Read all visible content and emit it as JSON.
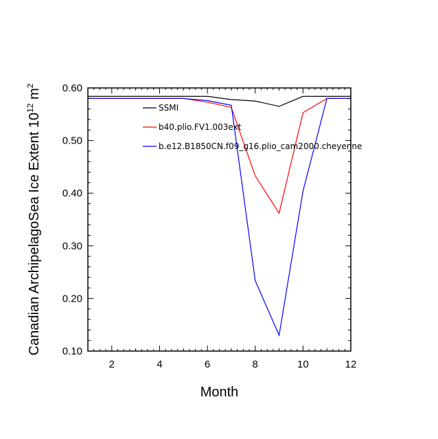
{
  "chart_data": {
    "type": "line",
    "xlabel": "Month",
    "ylabel_main": "Canadian ArchipelagoSea Ice Extent 10",
    "ylabel_exponent": "12",
    "ylabel_unit": " m",
    "ylabel_unit_exponent": "2",
    "xlim": [
      1,
      12
    ],
    "ylim": [
      0.1,
      0.6
    ],
    "xticks": [
      2,
      4,
      6,
      8,
      10,
      12
    ],
    "xtick_labels": [
      "2",
      "4",
      "6",
      "8",
      "10",
      "12"
    ],
    "yticks": [
      0.1,
      0.2,
      0.3,
      0.4,
      0.5,
      0.6
    ],
    "ytick_labels": [
      "0.10",
      "0.20",
      "0.30",
      "0.40",
      "0.50",
      "0.60"
    ],
    "grid": false,
    "legend_position": "top-right inside",
    "x": [
      1,
      2,
      3,
      4,
      5,
      6,
      7,
      8,
      9,
      10,
      11,
      12
    ],
    "series": [
      {
        "name": "SSMI",
        "color": "#000000",
        "values": [
          0.584,
          0.584,
          0.584,
          0.584,
          0.584,
          0.584,
          0.578,
          0.575,
          0.565,
          0.584,
          0.584,
          0.584
        ]
      },
      {
        "name": "b40.plio.FV1.003ext",
        "color": "#ff0000",
        "values": [
          0.58,
          0.58,
          0.58,
          0.58,
          0.58,
          0.573,
          0.563,
          0.433,
          0.362,
          0.553,
          0.58,
          0.58
        ]
      },
      {
        "name": "b.e12.B1850CN.f09_g16.plio_cam2000.cheyenne",
        "color": "#0000ff",
        "values": [
          0.58,
          0.58,
          0.58,
          0.58,
          0.58,
          0.576,
          0.567,
          0.234,
          0.13,
          0.404,
          0.58,
          0.58
        ]
      }
    ]
  }
}
